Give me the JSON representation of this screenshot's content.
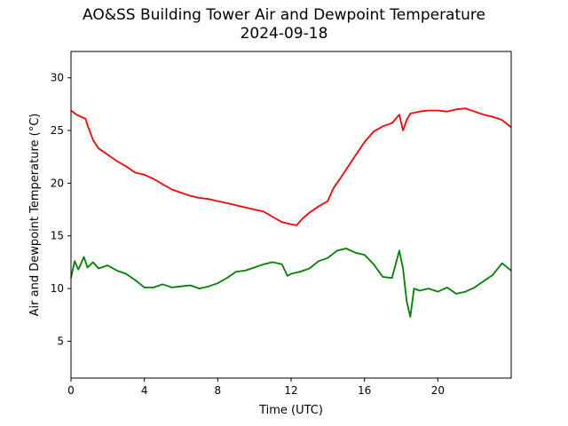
{
  "chart_data": {
    "type": "line",
    "title": "AO&SS Building Tower Air and Dewpoint Temperature",
    "subtitle": "2024-09-18",
    "xlabel": "Time (UTC)",
    "ylabel": "Air and Dewpoint Temperature (°C)",
    "xlim": [
      0,
      24
    ],
    "ylim": [
      1.5,
      32.5
    ],
    "xticks": [
      0,
      4,
      8,
      12,
      16,
      20
    ],
    "yticks": [
      5,
      10,
      15,
      20,
      25,
      30
    ],
    "grid": false,
    "series": [
      {
        "color": "#ff0000",
        "x": [
          0.0,
          0.3,
          0.8,
          0.9,
          1.2,
          1.5,
          2.0,
          2.5,
          3.0,
          3.5,
          4.0,
          4.5,
          5.0,
          5.5,
          6.0,
          6.5,
          7.0,
          7.5,
          8.0,
          8.5,
          9.0,
          9.5,
          10.0,
          10.5,
          11.0,
          11.5,
          12.0,
          12.3,
          12.6,
          13.0,
          13.5,
          14.0,
          14.3,
          14.7,
          15.0,
          15.5,
          16.0,
          16.5,
          17.0,
          17.5,
          17.9,
          18.1,
          18.3,
          18.5,
          19.0,
          19.5,
          20.0,
          20.5,
          21.0,
          21.5,
          22.0,
          22.5,
          23.0,
          23.5,
          24.0
        ],
        "y": [
          26.9,
          26.5,
          26.1,
          25.5,
          24.1,
          23.3,
          22.7,
          22.1,
          21.6,
          21.0,
          20.8,
          20.4,
          19.9,
          19.4,
          19.1,
          18.8,
          18.6,
          18.5,
          18.3,
          18.1,
          17.9,
          17.7,
          17.5,
          17.3,
          16.8,
          16.3,
          16.1,
          16.0,
          16.6,
          17.2,
          17.8,
          18.3,
          19.5,
          20.5,
          21.3,
          22.6,
          23.9,
          24.9,
          25.4,
          25.7,
          26.5,
          25.0,
          26.0,
          26.6,
          26.8,
          26.9,
          26.9,
          26.8,
          27.0,
          27.1,
          26.8,
          26.5,
          26.3,
          26.0,
          25.3
        ]
      },
      {
        "color": "#008000",
        "x": [
          0.0,
          0.2,
          0.4,
          0.7,
          0.9,
          1.2,
          1.5,
          2.0,
          2.5,
          3.0,
          3.5,
          4.0,
          4.5,
          5.0,
          5.5,
          6.0,
          6.5,
          7.0,
          7.5,
          8.0,
          8.5,
          9.0,
          9.5,
          10.0,
          10.5,
          11.0,
          11.5,
          11.8,
          12.0,
          12.5,
          13.0,
          13.5,
          14.0,
          14.5,
          15.0,
          15.5,
          16.0,
          16.5,
          17.0,
          17.5,
          17.9,
          18.1,
          18.3,
          18.5,
          18.7,
          19.0,
          19.5,
          20.0,
          20.5,
          21.0,
          21.5,
          22.0,
          22.5,
          23.0,
          23.5,
          24.0
        ],
        "y": [
          11.0,
          12.6,
          11.8,
          13.0,
          12.0,
          12.5,
          11.9,
          12.2,
          11.7,
          11.4,
          10.8,
          10.1,
          10.1,
          10.4,
          10.1,
          10.2,
          10.3,
          10.0,
          10.2,
          10.5,
          11.0,
          11.6,
          11.7,
          12.0,
          12.3,
          12.5,
          12.3,
          11.2,
          11.4,
          11.6,
          11.9,
          12.6,
          12.9,
          13.6,
          13.8,
          13.4,
          13.2,
          12.3,
          11.1,
          11.0,
          13.6,
          11.9,
          8.8,
          7.3,
          10.0,
          9.8,
          10.0,
          9.7,
          10.1,
          9.5,
          9.7,
          10.1,
          10.7,
          11.3,
          12.4,
          11.7
        ]
      }
    ]
  }
}
